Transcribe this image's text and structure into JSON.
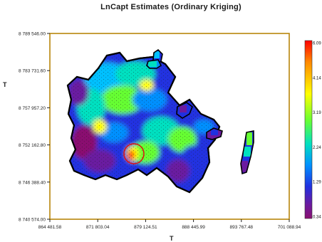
{
  "chart_data": {
    "type": "heatmap",
    "title": "LnCapt Estimates (Ordinary Kriging)",
    "xlabel": "T",
    "ylabel": "T",
    "x_ticks": [
      "864 481.58",
      "871 803.04",
      "879 124.51",
      "888 445.99",
      "893 767.48",
      "701 088.94"
    ],
    "y_ticks": [
      "8 789 546.00",
      "8 783 731.60",
      "8 757 957.20",
      "8 752 162.80",
      "8 746 388.40",
      "8 740 574.00"
    ],
    "colorbar": {
      "labels": [
        "6.09",
        "4.14",
        "3.19",
        "2.24",
        "1.29",
        "0.34"
      ],
      "colors": [
        "#ff0000",
        "#ff8800",
        "#ffff00",
        "#66ff33",
        "#00e0c0",
        "#0090ff",
        "#2030e0",
        "#6a1aa0",
        "#8a1070"
      ]
    },
    "highlight": "red circle marking a local maximum near the center-left of the region",
    "grid": false,
    "legend": "right"
  }
}
